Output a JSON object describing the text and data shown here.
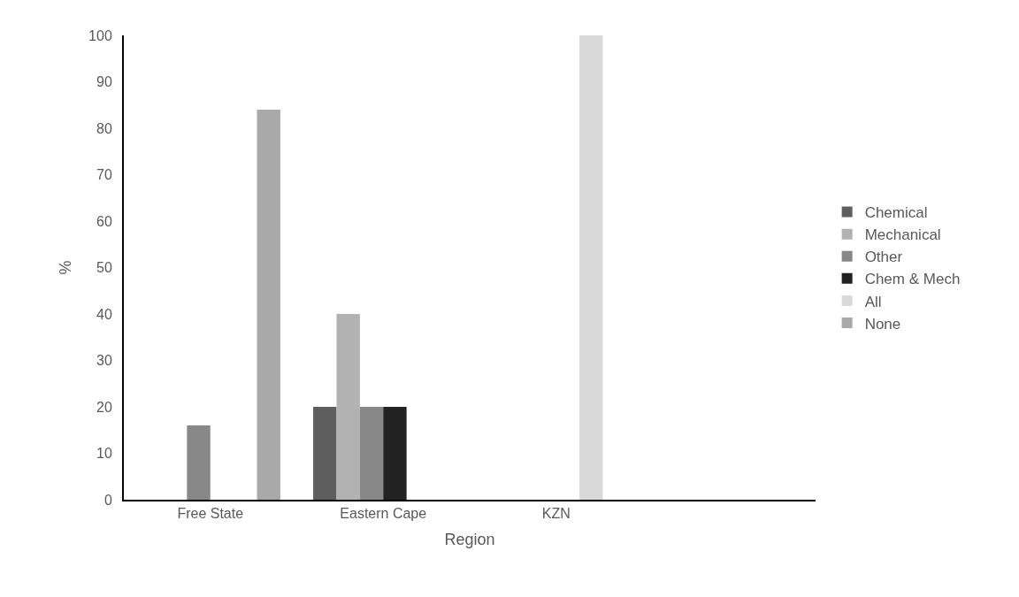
{
  "chart_data": {
    "type": "bar",
    "xlabel": "Region",
    "ylabel": "%",
    "categories": [
      "Free State",
      "Eastern Cape",
      "KZN",
      null
    ],
    "series": [
      {
        "name": "Chemical",
        "color": "#5e5e5e",
        "values": [
          null,
          20,
          null,
          null
        ]
      },
      {
        "name": "Mechanical",
        "color": "#b2b2b2",
        "values": [
          null,
          40,
          null,
          null
        ]
      },
      {
        "name": "Other",
        "color": "#888888",
        "values": [
          16,
          20,
          null,
          null
        ]
      },
      {
        "name": "Chem & Mech",
        "color": "#222222",
        "values": [
          null,
          20,
          null,
          null
        ]
      },
      {
        "name": "All",
        "color": "#d9d9d9",
        "values": [
          null,
          null,
          100,
          null
        ]
      },
      {
        "name": "None",
        "color": "#a9a9a9",
        "values": [
          84,
          null,
          null,
          null
        ]
      }
    ],
    "ylim": [
      0,
      100
    ],
    "yticks": [
      0,
      10,
      20,
      30,
      40,
      50,
      60,
      70,
      80,
      90,
      100
    ],
    "grid": false,
    "legend": "right"
  }
}
